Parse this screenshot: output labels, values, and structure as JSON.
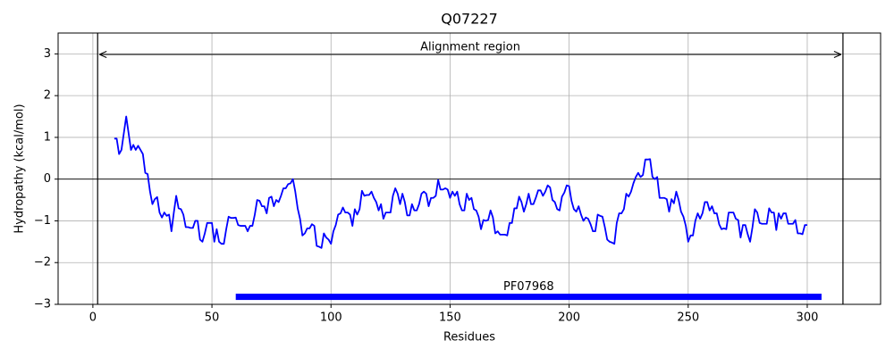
{
  "chart_data": {
    "type": "line",
    "title": "Q07227",
    "x_label": "Residues",
    "y_label": "Hydropathy (kcal/mol)",
    "color": "#0000ff",
    "grid": true,
    "xlim": [
      -14.6,
      330.8
    ],
    "ylim": [
      -3,
      3.5
    ],
    "xticks": [
      0,
      50,
      100,
      150,
      200,
      250,
      300
    ],
    "yticks": [
      {
        "value": -3,
        "label": "−3"
      },
      {
        "value": -2,
        "label": "−2"
      },
      {
        "value": -1,
        "label": "−1"
      },
      0,
      1,
      2,
      3
    ],
    "hline": 0,
    "region": {
      "label": "Alignment region",
      "start": 2,
      "end": 315
    },
    "domain": {
      "label": "PF07968",
      "start": 60,
      "end": 306,
      "y": -2.82,
      "color": "#0000ff"
    },
    "x": [
      9,
      10,
      11,
      12,
      13,
      14,
      15,
      16,
      17,
      18,
      19,
      20,
      21,
      22,
      23,
      24,
      25,
      26,
      27,
      28,
      29,
      30,
      31,
      32,
      33,
      34,
      35,
      36,
      37,
      38,
      39,
      40,
      41,
      42,
      43,
      44,
      45,
      46,
      47,
      48,
      49,
      50,
      51,
      52,
      53,
      54,
      55,
      56,
      57,
      58,
      59,
      60,
      61,
      62,
      63,
      64,
      65,
      66,
      67,
      68,
      69,
      70,
      71,
      72,
      73,
      74,
      75,
      76,
      77,
      78,
      79,
      80,
      81,
      82,
      83,
      84,
      85,
      86,
      87,
      88,
      89,
      90,
      91,
      92,
      93,
      94,
      95,
      96,
      97,
      98,
      99,
      100,
      101,
      102,
      103,
      104,
      105,
      106,
      107,
      108,
      109,
      110,
      111,
      112,
      113,
      114,
      115,
      116,
      117,
      118,
      119,
      120,
      121,
      122,
      123,
      124,
      125,
      126,
      127,
      128,
      129,
      130,
      131,
      132,
      133,
      134,
      135,
      136,
      137,
      138,
      139,
      140,
      141,
      142,
      143,
      144,
      145,
      146,
      147,
      148,
      149,
      150,
      151,
      152,
      153,
      154,
      155,
      156,
      157,
      158,
      159,
      160,
      161,
      162,
      163,
      164,
      165,
      166,
      167,
      168,
      169,
      170,
      171,
      172,
      173,
      174,
      175,
      176,
      177,
      178,
      179,
      180,
      181,
      182,
      183,
      184,
      185,
      186,
      187,
      188,
      189,
      190,
      191,
      192,
      193,
      194,
      195,
      196,
      197,
      198,
      199,
      200,
      201,
      202,
      203,
      204,
      205,
      206,
      207,
      208,
      209,
      210,
      211,
      212,
      213,
      214,
      215,
      216,
      217,
      218,
      219,
      220,
      221,
      222,
      223,
      224,
      225,
      226,
      227,
      228,
      229,
      230,
      231,
      232,
      233,
      234,
      235,
      236,
      237,
      238,
      239,
      240,
      241,
      242,
      243,
      244,
      245,
      246,
      247,
      248,
      249,
      250,
      251,
      252,
      253,
      254,
      255,
      256,
      257,
      258,
      259,
      260,
      261,
      262,
      263,
      264,
      265,
      266,
      267,
      268,
      269,
      270,
      271,
      272,
      273,
      274,
      275,
      276,
      277,
      278,
      279,
      280,
      281,
      282,
      283,
      284,
      285,
      286,
      287,
      288,
      289,
      290,
      291,
      292,
      293,
      294,
      295,
      296,
      297,
      298,
      299,
      300
    ],
    "values": [
      0.97,
      0.97,
      0.6,
      0.7,
      1.1,
      1.5,
      1.1,
      0.7,
      0.82,
      0.7,
      0.8,
      0.7,
      0.6,
      0.15,
      0.12,
      -0.3,
      -0.6,
      -0.48,
      -0.43,
      -0.8,
      -0.92,
      -0.8,
      -0.88,
      -0.85,
      -1.25,
      -0.8,
      -0.4,
      -0.7,
      -0.72,
      -0.85,
      -1.15,
      -1.15,
      -1.17,
      -1.17,
      -1.0,
      -1.0,
      -1.45,
      -1.5,
      -1.3,
      -1.05,
      -1.05,
      -1.05,
      -1.5,
      -1.2,
      -1.5,
      -1.55,
      -1.55,
      -1.2,
      -0.9,
      -0.93,
      -0.93,
      -0.92,
      -1.1,
      -1.12,
      -1.12,
      -1.12,
      -1.25,
      -1.12,
      -1.12,
      -0.85,
      -0.5,
      -0.52,
      -0.65,
      -0.65,
      -0.82,
      -0.45,
      -0.42,
      -0.65,
      -0.5,
      -0.55,
      -0.4,
      -0.22,
      -0.22,
      -0.12,
      -0.1,
      0.0,
      -0.3,
      -0.7,
      -0.95,
      -1.35,
      -1.3,
      -1.18,
      -1.18,
      -1.08,
      -1.12,
      -1.6,
      -1.62,
      -1.65,
      -1.3,
      -1.4,
      -1.45,
      -1.55,
      -1.25,
      -1.1,
      -0.85,
      -0.82,
      -0.68,
      -0.8,
      -0.8,
      -0.85,
      -1.12,
      -0.72,
      -0.85,
      -0.72,
      -0.28,
      -0.4,
      -0.38,
      -0.38,
      -0.3,
      -0.45,
      -0.55,
      -0.75,
      -0.6,
      -0.95,
      -0.8,
      -0.8,
      -0.8,
      -0.4,
      -0.22,
      -0.35,
      -0.6,
      -0.35,
      -0.55,
      -0.87,
      -0.87,
      -0.6,
      -0.75,
      -0.75,
      -0.6,
      -0.35,
      -0.3,
      -0.35,
      -0.65,
      -0.45,
      -0.45,
      -0.4,
      -0.02,
      -0.25,
      -0.25,
      -0.22,
      -0.25,
      -0.45,
      -0.3,
      -0.4,
      -0.3,
      -0.6,
      -0.75,
      -0.75,
      -0.35,
      -0.5,
      -0.45,
      -0.72,
      -0.75,
      -0.9,
      -1.2,
      -0.98,
      -1.0,
      -0.98,
      -0.75,
      -0.92,
      -1.3,
      -1.25,
      -1.33,
      -1.33,
      -1.33,
      -1.35,
      -1.05,
      -1.05,
      -0.7,
      -0.7,
      -0.42,
      -0.55,
      -0.78,
      -0.6,
      -0.35,
      -0.6,
      -0.6,
      -0.45,
      -0.27,
      -0.27,
      -0.4,
      -0.3,
      -0.15,
      -0.2,
      -0.5,
      -0.55,
      -0.72,
      -0.75,
      -0.42,
      -0.32,
      -0.15,
      -0.17,
      -0.52,
      -0.72,
      -0.78,
      -0.65,
      -0.85,
      -1.0,
      -0.92,
      -0.95,
      -1.08,
      -1.25,
      -1.25,
      -0.85,
      -0.88,
      -0.9,
      -1.15,
      -1.45,
      -1.5,
      -1.52,
      -1.55,
      -1.05,
      -0.82,
      -0.82,
      -0.72,
      -0.35,
      -0.42,
      -0.3,
      -0.1,
      0.05,
      0.15,
      0.05,
      0.1,
      0.47,
      0.47,
      0.48,
      0.05,
      0.0,
      0.05,
      -0.45,
      -0.45,
      -0.45,
      -0.48,
      -0.78,
      -0.48,
      -0.58,
      -0.3,
      -0.5,
      -0.78,
      -0.9,
      -1.12,
      -1.5,
      -1.35,
      -1.35,
      -1.0,
      -0.82,
      -0.95,
      -0.82,
      -0.55,
      -0.55,
      -0.75,
      -0.65,
      -0.82,
      -0.82,
      -1.08,
      -1.2,
      -1.18,
      -1.2,
      -0.8,
      -0.8,
      -0.8,
      -0.95,
      -0.98,
      -1.4,
      -1.1,
      -1.1,
      -1.32,
      -1.5,
      -1.15,
      -0.72,
      -0.8,
      -1.05,
      -1.07,
      -1.07,
      -1.07,
      -0.7,
      -0.8,
      -0.8,
      -1.22,
      -0.82,
      -0.95,
      -0.82,
      -0.82,
      -1.07,
      -1.07,
      -1.07,
      -0.98,
      -1.3,
      -1.3,
      -1.32,
      -1.1,
      -1.1
    ]
  }
}
